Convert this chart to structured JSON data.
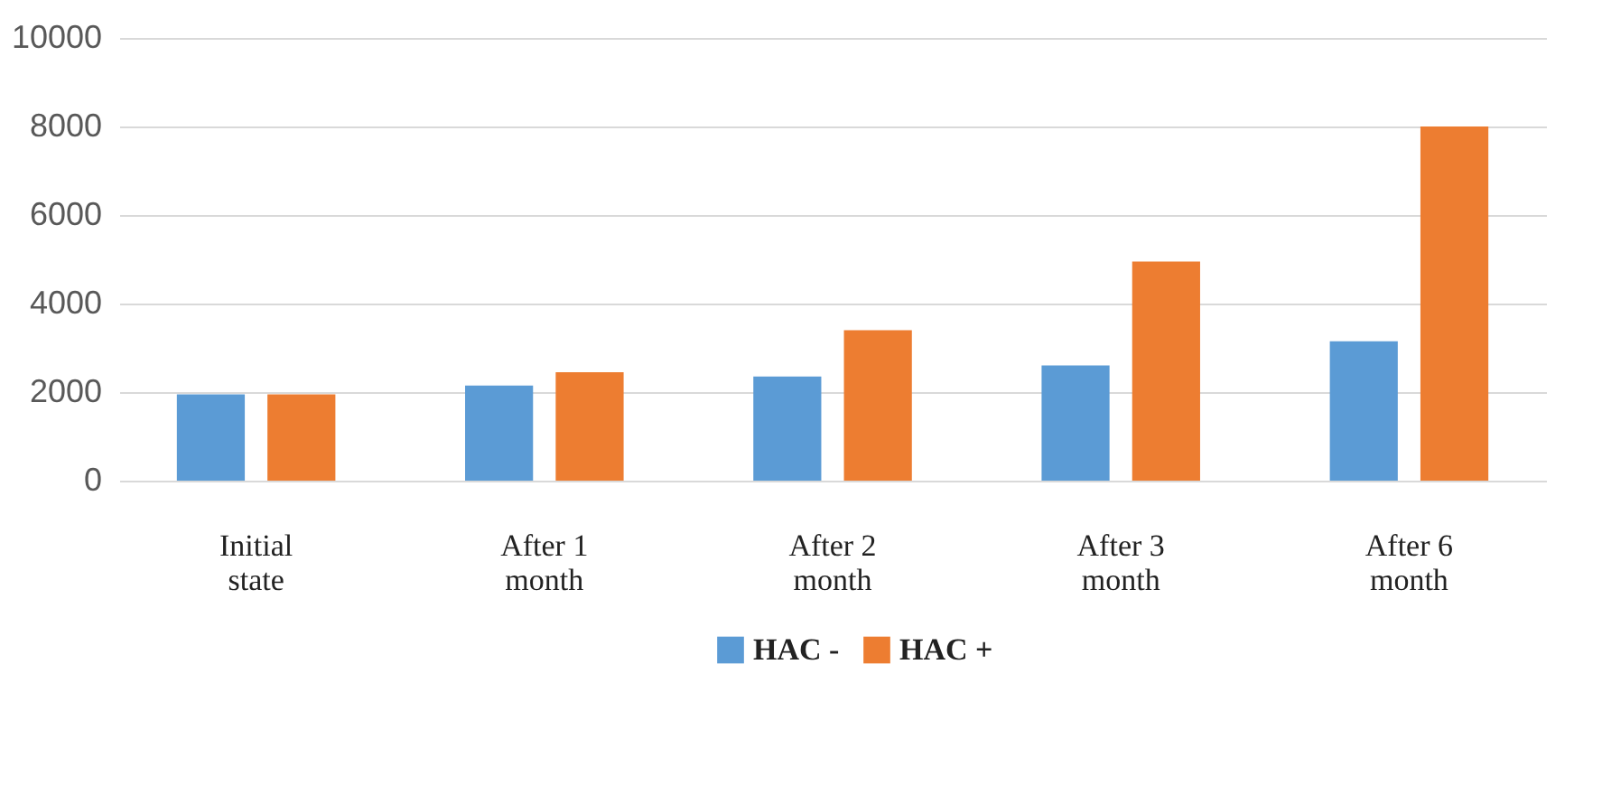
{
  "chart_data": {
    "type": "bar",
    "categories": [
      "Initial state",
      "After 1 month",
      "After 2 month",
      "After 3 month",
      "After 6 month"
    ],
    "series": [
      {
        "name": "HAC -",
        "color": "#5b9bd5",
        "values": [
          1950,
          2150,
          2350,
          2600,
          3150
        ]
      },
      {
        "name": "HAC +",
        "color": "#ed7d31",
        "values": [
          1950,
          2450,
          3400,
          4950,
          8000
        ]
      }
    ],
    "ylim": [
      0,
      10000
    ],
    "yticks": [
      0,
      2000,
      4000,
      6000,
      8000,
      10000
    ],
    "grid": "y",
    "legend": "bottom"
  }
}
